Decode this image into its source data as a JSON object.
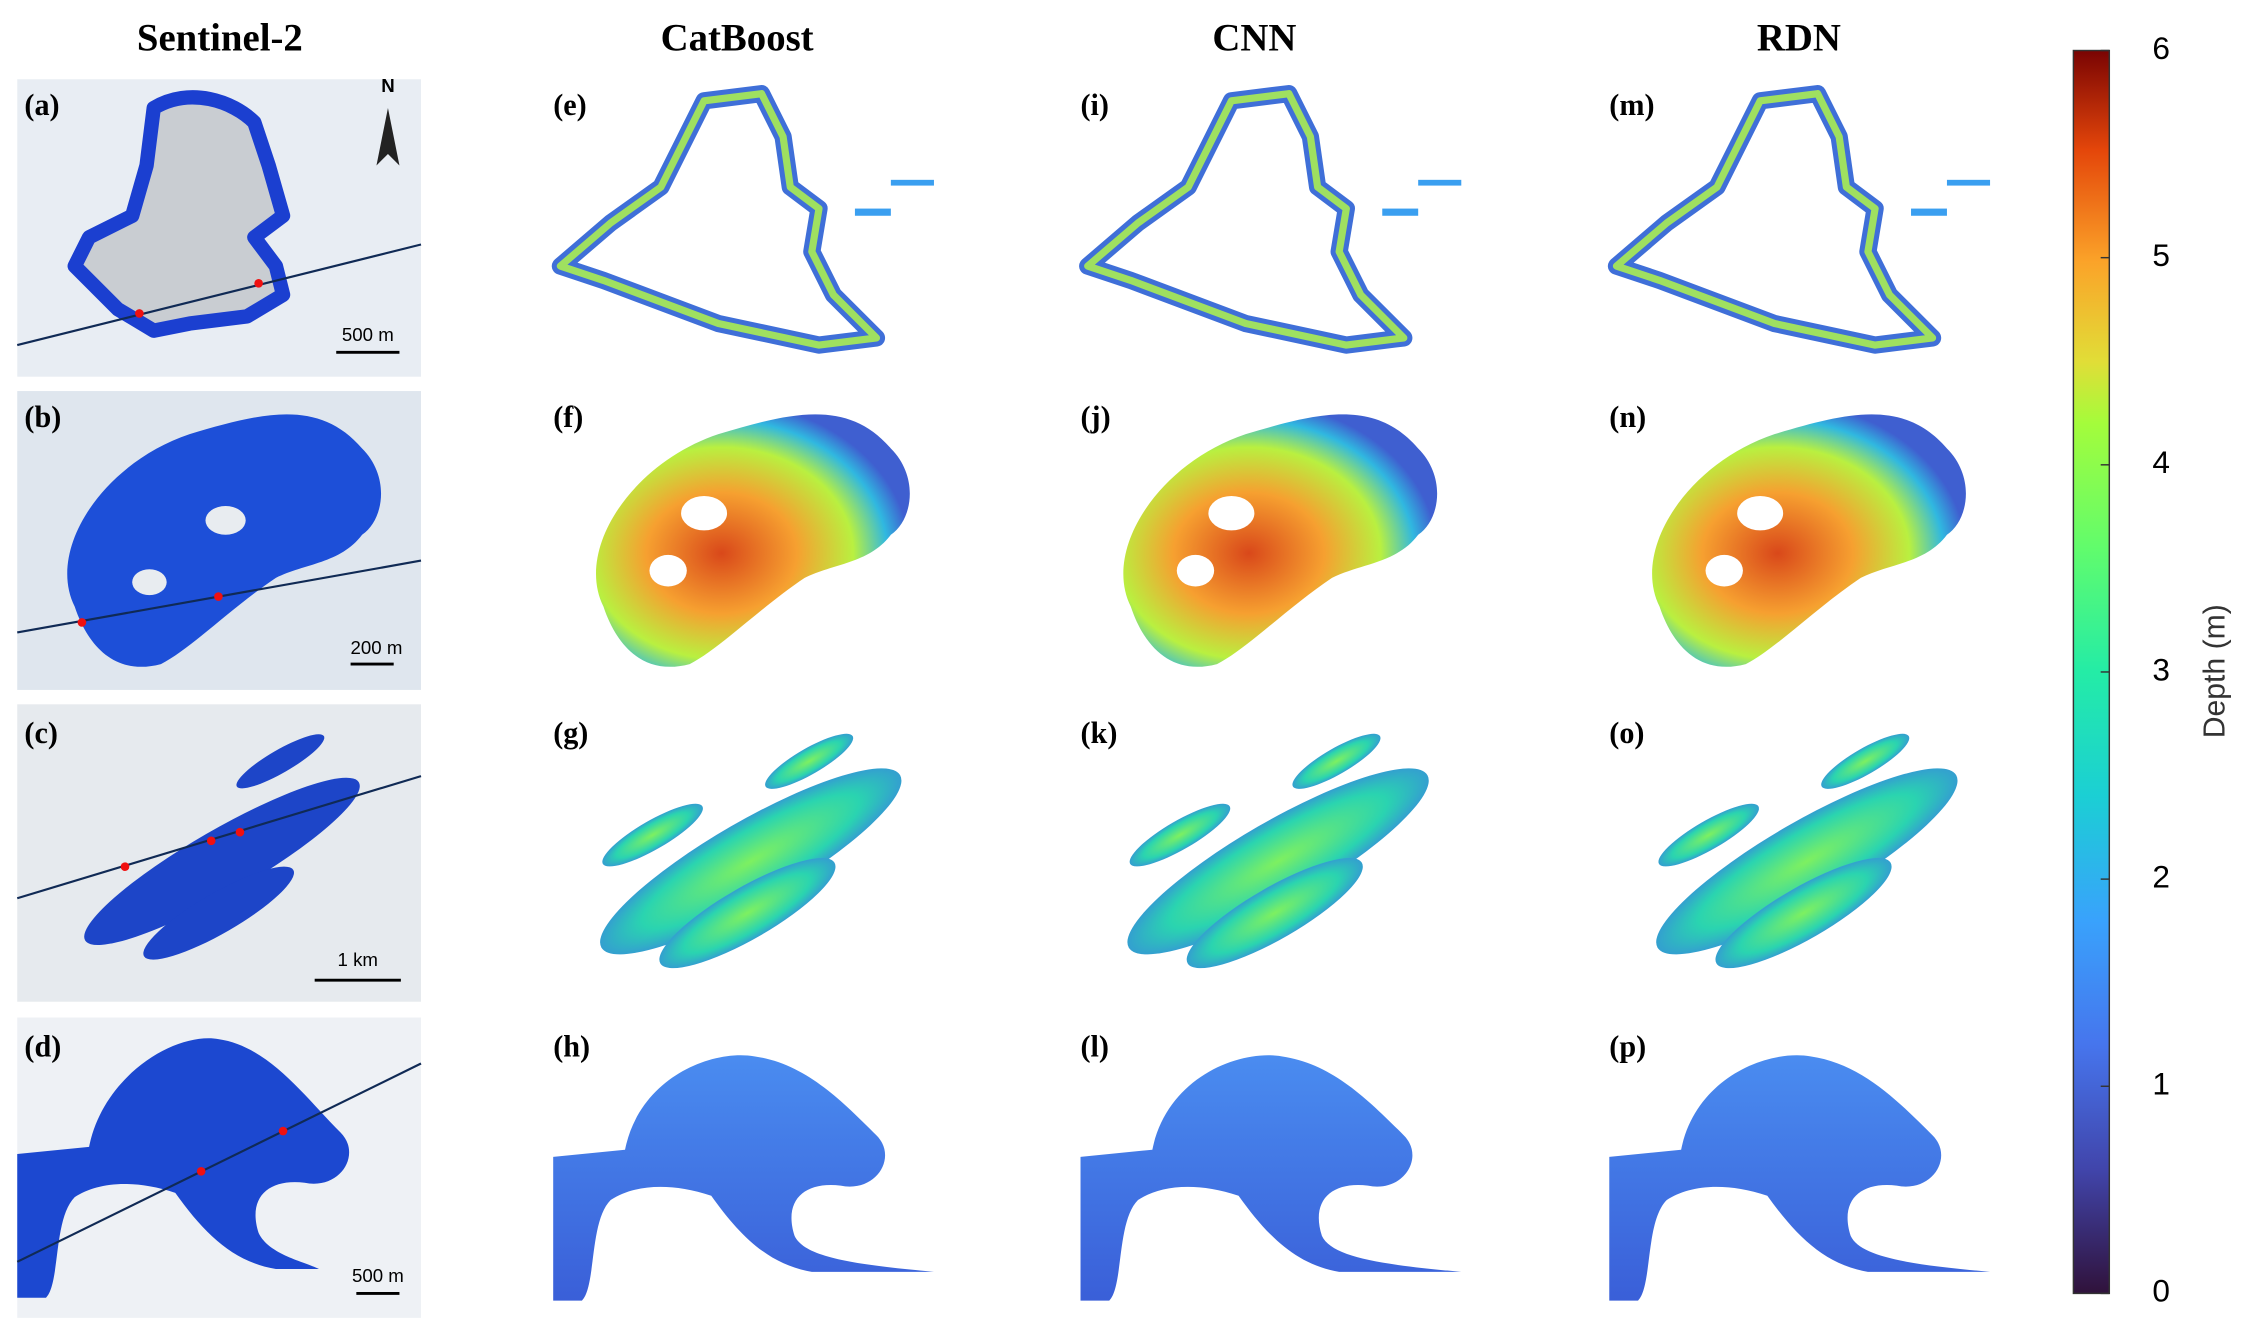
{
  "columns": [
    "Sentinel-2",
    "CatBoost",
    "CNN",
    "RDN"
  ],
  "panel_labels": [
    [
      "(a)",
      "(e)",
      "(i)",
      "(m)"
    ],
    [
      "(b)",
      "(f)",
      "(j)",
      "(n)"
    ],
    [
      "(c)",
      "(g)",
      "(k)",
      "(o)"
    ],
    [
      "(d)",
      "(h)",
      "(l)",
      "(p)"
    ]
  ],
  "north_arrow": "N",
  "scale_bars": [
    "500 m",
    "200 m",
    "1 km",
    "500 m"
  ],
  "colorbar": {
    "label": "Depth (m)",
    "lim": [
      0,
      6
    ],
    "ticks": [
      0,
      1,
      2,
      3,
      4,
      5,
      6
    ]
  }
}
